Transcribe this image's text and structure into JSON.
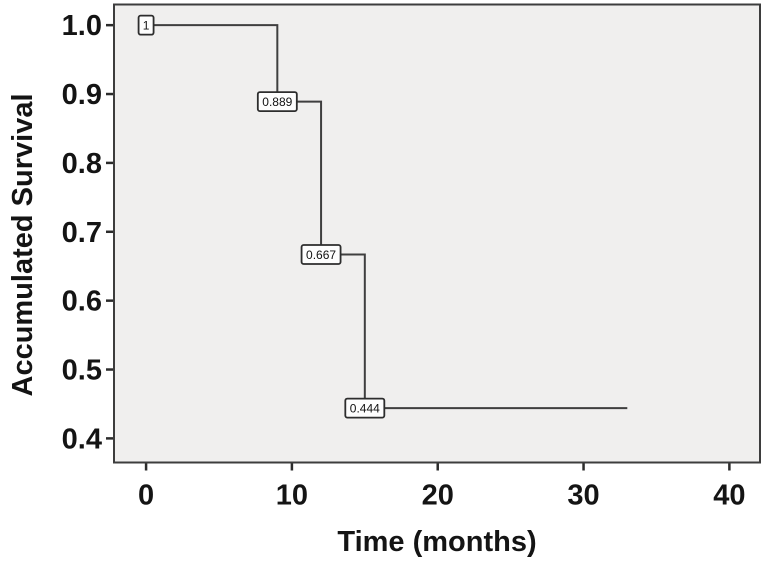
{
  "figure": {
    "background": "#ffffff"
  },
  "chart_data": {
    "type": "line",
    "chart_style": "kaplan-meier-step",
    "title": "",
    "xlabel": "Time (months)",
    "ylabel": "Accumulated Survival",
    "x_ticks": [
      0,
      10,
      20,
      30,
      40
    ],
    "x_tick_labels": [
      "0",
      "10",
      "20",
      "30",
      "40"
    ],
    "y_ticks": [
      1.0,
      0.9,
      0.8,
      0.7,
      0.6,
      0.5,
      0.4
    ],
    "y_tick_labels": [
      "1.0",
      "0.9",
      "0.8",
      "0.7",
      "0.6",
      "0.5",
      "0.4"
    ],
    "xlim": [
      -2.2,
      42.1
    ],
    "ylim": [
      0.365,
      1.03
    ],
    "grid": false,
    "legend": "none",
    "point_labels_boxed": true,
    "series": [
      {
        "name": "accumulated-survival",
        "points": [
          {
            "t": 0,
            "s": 1.0,
            "label": "1"
          },
          {
            "t": 9,
            "s": 0.889,
            "label": "0.889"
          },
          {
            "t": 12,
            "s": 0.667,
            "label": "0.667"
          },
          {
            "t": 15,
            "s": 0.444,
            "label": "0.444"
          }
        ],
        "follow_up_end_t": 33
      }
    ],
    "colors": {
      "plot_background": "#f0efee",
      "frame": "#3d3d3d",
      "line": "#3f3f3f",
      "tick": "#2b2b2b",
      "text": "#141414",
      "label_box_fill": "#fdfdfd",
      "label_box_border": "#2d2d2d"
    }
  }
}
